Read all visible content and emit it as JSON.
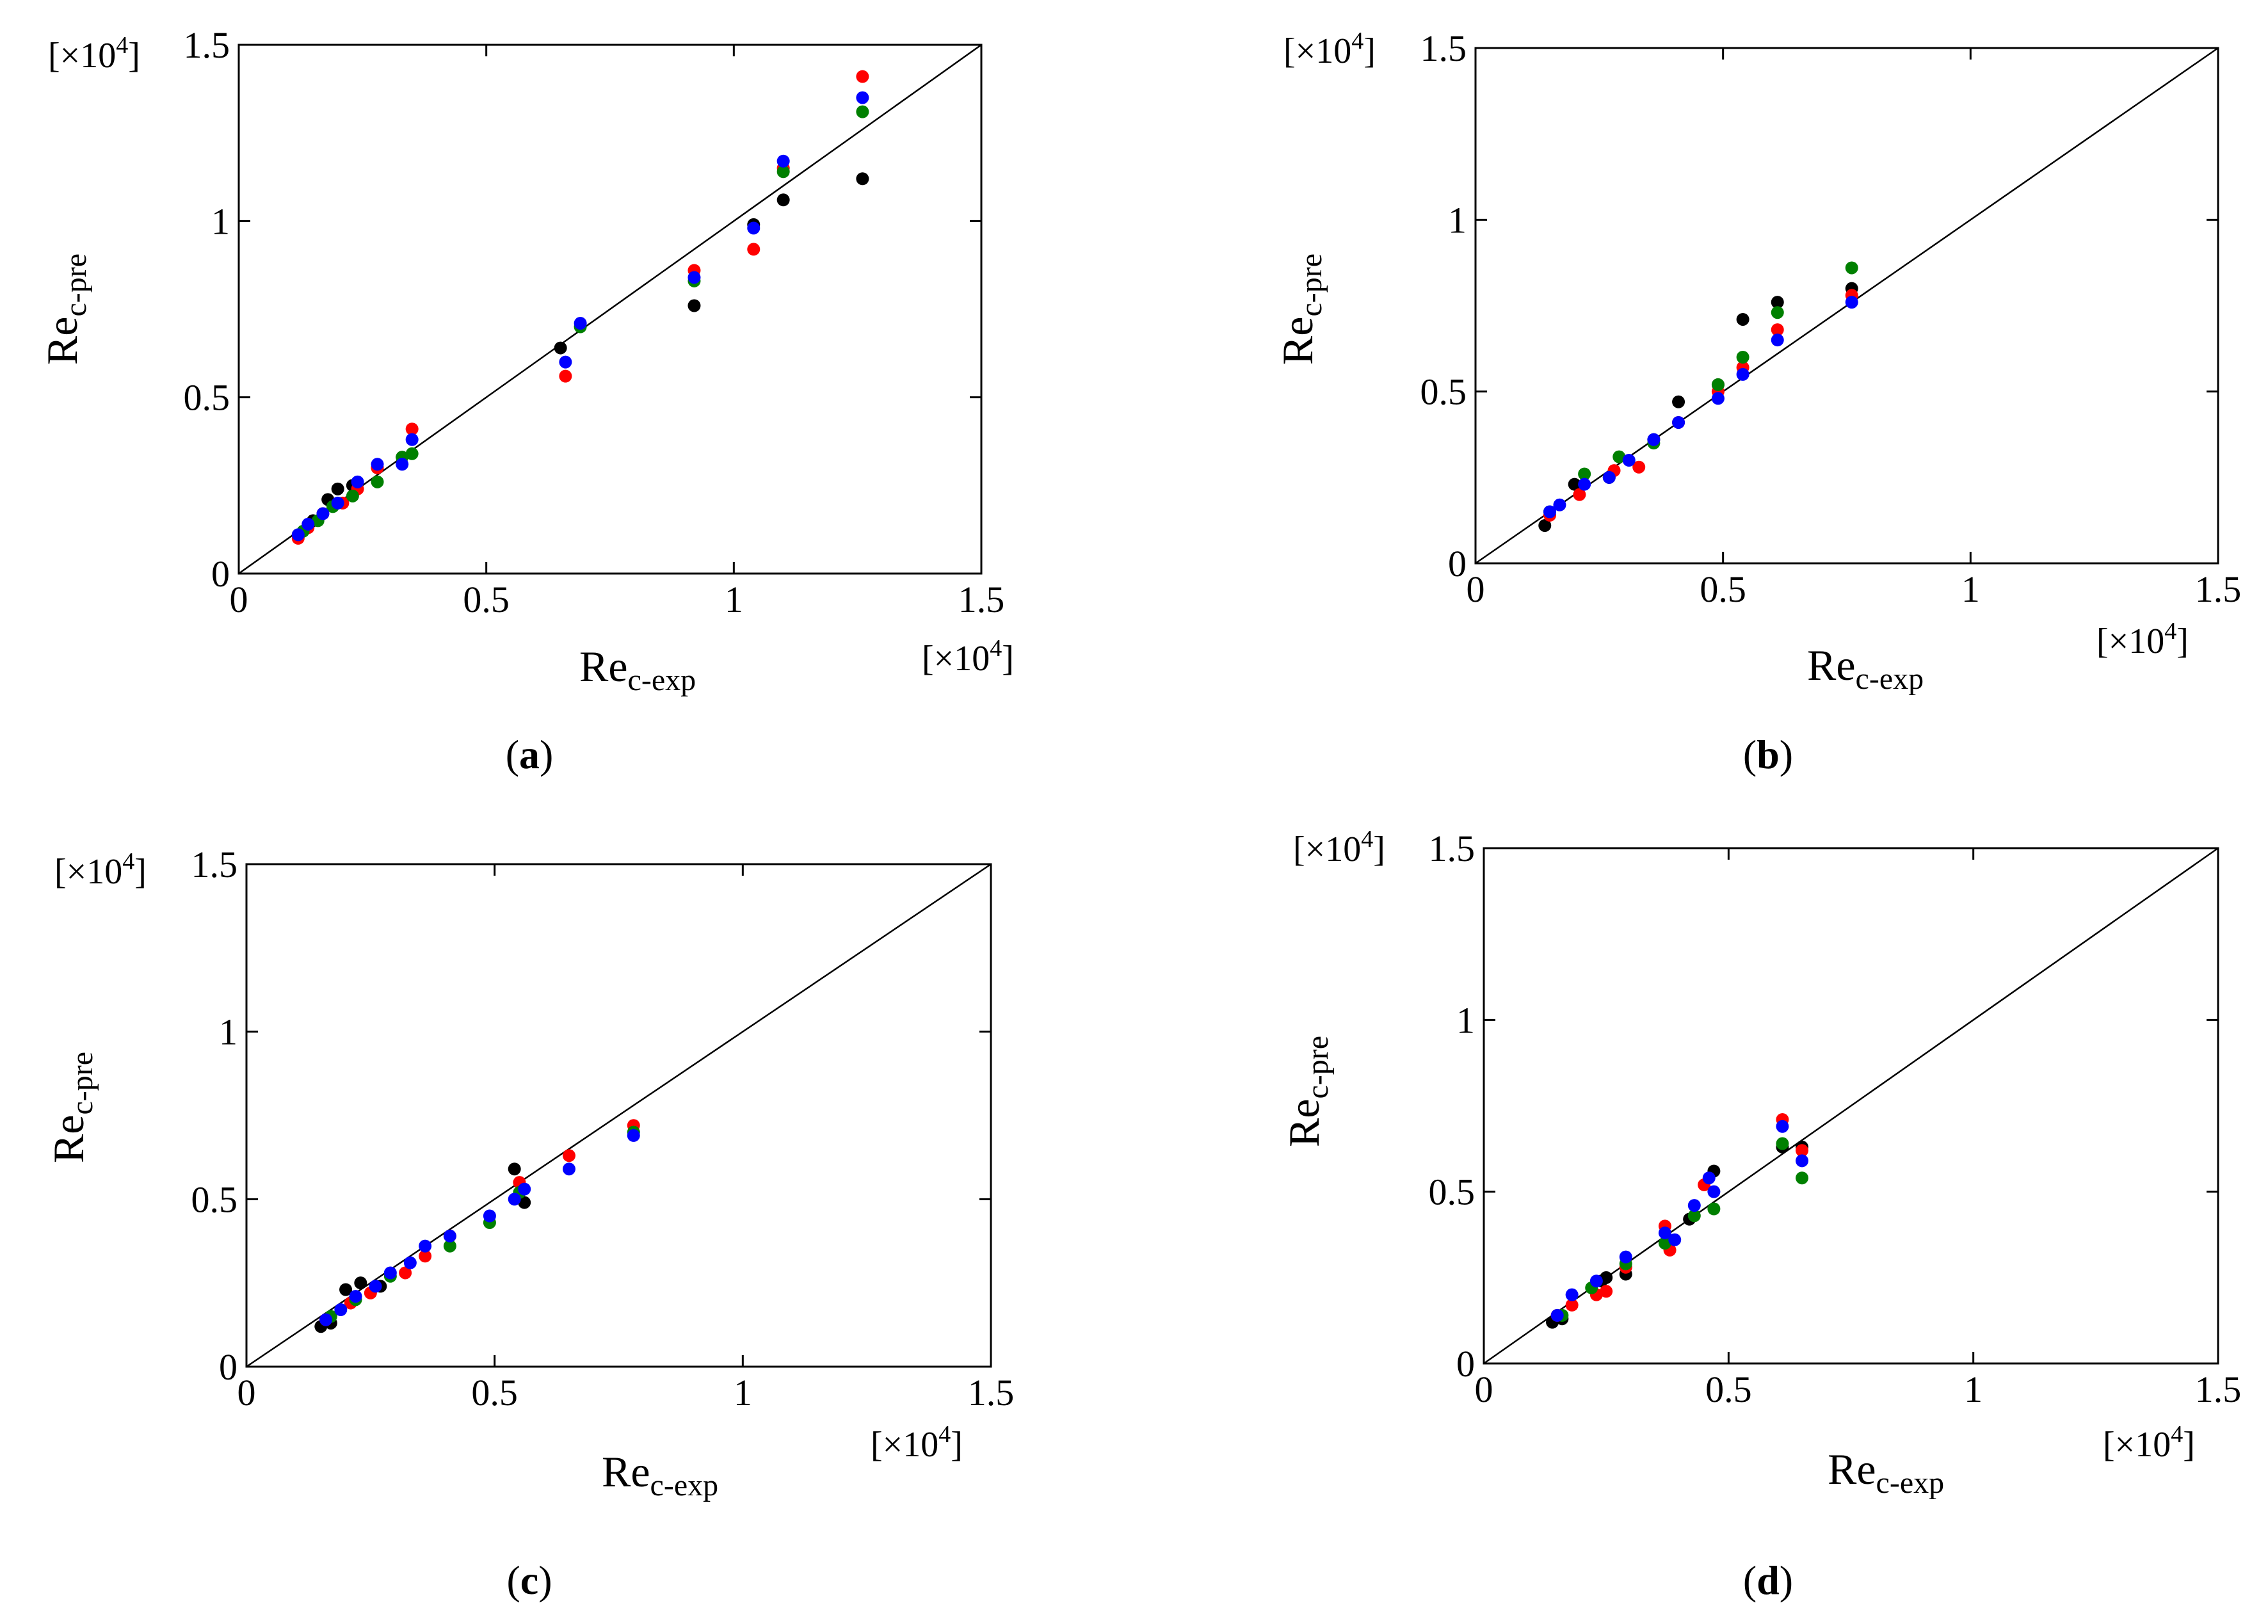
{
  "colors": {
    "black": "#000000",
    "red": "#ff0000",
    "green": "#008000",
    "blue": "#0000ff",
    "axis": "#000000"
  },
  "chart_data": [
    {
      "panel_label": "a",
      "type": "scatter",
      "title": "",
      "xlabel_main": "Re",
      "xlabel_sub": "c-exp",
      "ylabel_main": "Re",
      "ylabel_sub": "c-pre",
      "multiplier_text": "[×10",
      "multiplier_exp": "4",
      "multiplier_close": "]",
      "xlim": [
        0,
        1.5
      ],
      "ylim": [
        0,
        1.5
      ],
      "x_ticks": [
        "0",
        "0.5",
        "1",
        "1.5"
      ],
      "y_ticks": [
        "0",
        "0.5",
        "1",
        "1.5"
      ],
      "tick_values": [
        0,
        0.5,
        1,
        1.5
      ],
      "reference_line": [
        [
          0,
          0
        ],
        [
          1.5,
          1.5
        ]
      ],
      "series": [
        {
          "name": "black",
          "color": "black",
          "points": [
            [
              0.12,
              0.11
            ],
            [
              0.15,
              0.15
            ],
            [
              0.18,
              0.21
            ],
            [
              0.2,
              0.24
            ],
            [
              0.23,
              0.25
            ],
            [
              0.28,
              0.3
            ],
            [
              0.33,
              0.33
            ],
            [
              0.65,
              0.64
            ],
            [
              0.92,
              0.76
            ],
            [
              1.04,
              0.99
            ],
            [
              1.1,
              1.06
            ],
            [
              1.26,
              1.12
            ]
          ]
        },
        {
          "name": "red",
          "color": "red",
          "points": [
            [
              0.12,
              0.1
            ],
            [
              0.14,
              0.13
            ],
            [
              0.17,
              0.17
            ],
            [
              0.21,
              0.2
            ],
            [
              0.24,
              0.24
            ],
            [
              0.28,
              0.3
            ],
            [
              0.35,
              0.41
            ],
            [
              0.66,
              0.56
            ],
            [
              0.92,
              0.86
            ],
            [
              1.04,
              0.92
            ],
            [
              1.1,
              1.15
            ],
            [
              1.26,
              1.41
            ]
          ]
        },
        {
          "name": "green",
          "color": "green",
          "points": [
            [
              0.13,
              0.12
            ],
            [
              0.16,
              0.15
            ],
            [
              0.19,
              0.19
            ],
            [
              0.23,
              0.22
            ],
            [
              0.28,
              0.26
            ],
            [
              0.33,
              0.33
            ],
            [
              0.35,
              0.34
            ],
            [
              0.69,
              0.7
            ],
            [
              0.92,
              0.83
            ],
            [
              1.1,
              1.14
            ],
            [
              1.26,
              1.31
            ]
          ]
        },
        {
          "name": "blue",
          "color": "blue",
          "points": [
            [
              0.12,
              0.11
            ],
            [
              0.14,
              0.14
            ],
            [
              0.17,
              0.17
            ],
            [
              0.2,
              0.2
            ],
            [
              0.24,
              0.26
            ],
            [
              0.28,
              0.31
            ],
            [
              0.33,
              0.31
            ],
            [
              0.35,
              0.38
            ],
            [
              0.66,
              0.6
            ],
            [
              0.69,
              0.71
            ],
            [
              0.92,
              0.84
            ],
            [
              1.04,
              0.98
            ],
            [
              1.1,
              1.17
            ],
            [
              1.26,
              1.35
            ]
          ]
        }
      ]
    },
    {
      "panel_label": "b",
      "type": "scatter",
      "title": "",
      "xlabel_main": "Re",
      "xlabel_sub": "c-exp",
      "ylabel_main": "Re",
      "ylabel_sub": "c-pre",
      "multiplier_text": "[×10",
      "multiplier_exp": "4",
      "multiplier_close": "]",
      "xlim": [
        0,
        1.5
      ],
      "ylim": [
        0,
        1.5
      ],
      "x_ticks": [
        "0",
        "0.5",
        "1",
        "1.5"
      ],
      "y_ticks": [
        "0",
        "0.5",
        "1",
        "1.5"
      ],
      "tick_values": [
        0,
        0.5,
        1,
        1.5
      ],
      "reference_line": [
        [
          0,
          0
        ],
        [
          1.5,
          1.5
        ]
      ],
      "series": [
        {
          "name": "black",
          "color": "black",
          "points": [
            [
              0.14,
              0.11
            ],
            [
              0.2,
              0.23
            ],
            [
              0.27,
              0.25
            ],
            [
              0.36,
              0.36
            ],
            [
              0.41,
              0.47
            ],
            [
              0.49,
              0.52
            ],
            [
              0.54,
              0.71
            ],
            [
              0.61,
              0.76
            ],
            [
              0.76,
              0.8
            ]
          ]
        },
        {
          "name": "red",
          "color": "red",
          "points": [
            [
              0.15,
              0.14
            ],
            [
              0.21,
              0.2
            ],
            [
              0.28,
              0.27
            ],
            [
              0.33,
              0.28
            ],
            [
              0.41,
              0.41
            ],
            [
              0.49,
              0.5
            ],
            [
              0.54,
              0.57
            ],
            [
              0.61,
              0.68
            ],
            [
              0.76,
              0.78
            ]
          ]
        },
        {
          "name": "green",
          "color": "green",
          "points": [
            [
              0.15,
              0.15
            ],
            [
              0.22,
              0.26
            ],
            [
              0.29,
              0.31
            ],
            [
              0.36,
              0.35
            ],
            [
              0.49,
              0.52
            ],
            [
              0.54,
              0.6
            ],
            [
              0.61,
              0.73
            ],
            [
              0.76,
              0.86
            ]
          ]
        },
        {
          "name": "blue",
          "color": "blue",
          "points": [
            [
              0.15,
              0.15
            ],
            [
              0.17,
              0.17
            ],
            [
              0.22,
              0.23
            ],
            [
              0.27,
              0.25
            ],
            [
              0.31,
              0.3
            ],
            [
              0.36,
              0.36
            ],
            [
              0.41,
              0.41
            ],
            [
              0.49,
              0.48
            ],
            [
              0.54,
              0.55
            ],
            [
              0.61,
              0.65
            ],
            [
              0.76,
              0.76
            ]
          ]
        }
      ]
    },
    {
      "panel_label": "c",
      "type": "scatter",
      "title": "",
      "xlabel_main": "Re",
      "xlabel_sub": "c-exp",
      "ylabel_main": "Re",
      "ylabel_sub": "c-pre",
      "multiplier_text": "[×10",
      "multiplier_exp": "4",
      "multiplier_close": "]",
      "xlim": [
        0,
        1.5
      ],
      "ylim": [
        0,
        1.5
      ],
      "x_ticks": [
        "0",
        "0.5",
        "1",
        "1.5"
      ],
      "y_ticks": [
        "0",
        "0.5",
        "1",
        "1.5"
      ],
      "tick_values": [
        0,
        0.5,
        1,
        1.5
      ],
      "reference_line": [
        [
          0,
          0
        ],
        [
          1.5,
          1.5
        ]
      ],
      "series": [
        {
          "name": "black",
          "color": "black",
          "points": [
            [
              0.15,
              0.12
            ],
            [
              0.17,
              0.13
            ],
            [
              0.2,
              0.23
            ],
            [
              0.23,
              0.25
            ],
            [
              0.27,
              0.24
            ],
            [
              0.54,
              0.59
            ],
            [
              0.56,
              0.49
            ]
          ]
        },
        {
          "name": "red",
          "color": "red",
          "points": [
            [
              0.16,
              0.14
            ],
            [
              0.21,
              0.19
            ],
            [
              0.25,
              0.22
            ],
            [
              0.32,
              0.28
            ],
            [
              0.36,
              0.33
            ],
            [
              0.41,
              0.39
            ],
            [
              0.55,
              0.55
            ],
            [
              0.65,
              0.63
            ],
            [
              0.78,
              0.72
            ]
          ]
        },
        {
          "name": "green",
          "color": "green",
          "points": [
            [
              0.17,
              0.15
            ],
            [
              0.22,
              0.2
            ],
            [
              0.29,
              0.27
            ],
            [
              0.41,
              0.36
            ],
            [
              0.49,
              0.43
            ],
            [
              0.55,
              0.52
            ],
            [
              0.78,
              0.7
            ]
          ]
        },
        {
          "name": "blue",
          "color": "blue",
          "points": [
            [
              0.16,
              0.14
            ],
            [
              0.19,
              0.17
            ],
            [
              0.22,
              0.21
            ],
            [
              0.26,
              0.24
            ],
            [
              0.29,
              0.28
            ],
            [
              0.33,
              0.31
            ],
            [
              0.36,
              0.36
            ],
            [
              0.41,
              0.39
            ],
            [
              0.49,
              0.45
            ],
            [
              0.54,
              0.5
            ],
            [
              0.56,
              0.53
            ],
            [
              0.65,
              0.59
            ],
            [
              0.78,
              0.69
            ]
          ]
        }
      ]
    },
    {
      "panel_label": "d",
      "type": "scatter",
      "title": "",
      "xlabel_main": "Re",
      "xlabel_sub": "c-exp",
      "ylabel_main": "Re",
      "ylabel_sub": "c-pre",
      "multiplier_text": "[×10",
      "multiplier_exp": "4",
      "multiplier_close": "]",
      "xlim": [
        0,
        1.5
      ],
      "ylim": [
        0,
        1.5
      ],
      "x_ticks": [
        "0",
        "0.5",
        "1",
        "1.5"
      ],
      "y_ticks": [
        "0",
        "0.5",
        "1",
        "1.5"
      ],
      "tick_values": [
        0,
        0.5,
        1,
        1.5
      ],
      "reference_line": [
        [
          0,
          0
        ],
        [
          1.5,
          1.5
        ]
      ],
      "series": [
        {
          "name": "black",
          "color": "black",
          "points": [
            [
              0.14,
              0.12
            ],
            [
              0.16,
              0.13
            ],
            [
              0.24,
              0.24
            ],
            [
              0.25,
              0.25
            ],
            [
              0.29,
              0.26
            ],
            [
              0.42,
              0.42
            ],
            [
              0.47,
              0.56
            ],
            [
              0.61,
              0.63
            ],
            [
              0.65,
              0.63
            ]
          ]
        },
        {
          "name": "red",
          "color": "red",
          "points": [
            [
              0.15,
              0.14
            ],
            [
              0.18,
              0.17
            ],
            [
              0.23,
              0.2
            ],
            [
              0.25,
              0.21
            ],
            [
              0.29,
              0.28
            ],
            [
              0.37,
              0.4
            ],
            [
              0.38,
              0.33
            ],
            [
              0.45,
              0.52
            ],
            [
              0.61,
              0.71
            ],
            [
              0.65,
              0.62
            ]
          ]
        },
        {
          "name": "green",
          "color": "green",
          "points": [
            [
              0.16,
              0.14
            ],
            [
              0.22,
              0.22
            ],
            [
              0.29,
              0.29
            ],
            [
              0.37,
              0.35
            ],
            [
              0.43,
              0.43
            ],
            [
              0.47,
              0.45
            ],
            [
              0.61,
              0.64
            ],
            [
              0.65,
              0.54
            ]
          ]
        },
        {
          "name": "blue",
          "color": "blue",
          "points": [
            [
              0.15,
              0.14
            ],
            [
              0.18,
              0.2
            ],
            [
              0.23,
              0.24
            ],
            [
              0.29,
              0.31
            ],
            [
              0.37,
              0.38
            ],
            [
              0.39,
              0.36
            ],
            [
              0.43,
              0.46
            ],
            [
              0.46,
              0.54
            ],
            [
              0.47,
              0.5
            ],
            [
              0.61,
              0.69
            ],
            [
              0.65,
              0.59
            ]
          ]
        }
      ]
    }
  ]
}
